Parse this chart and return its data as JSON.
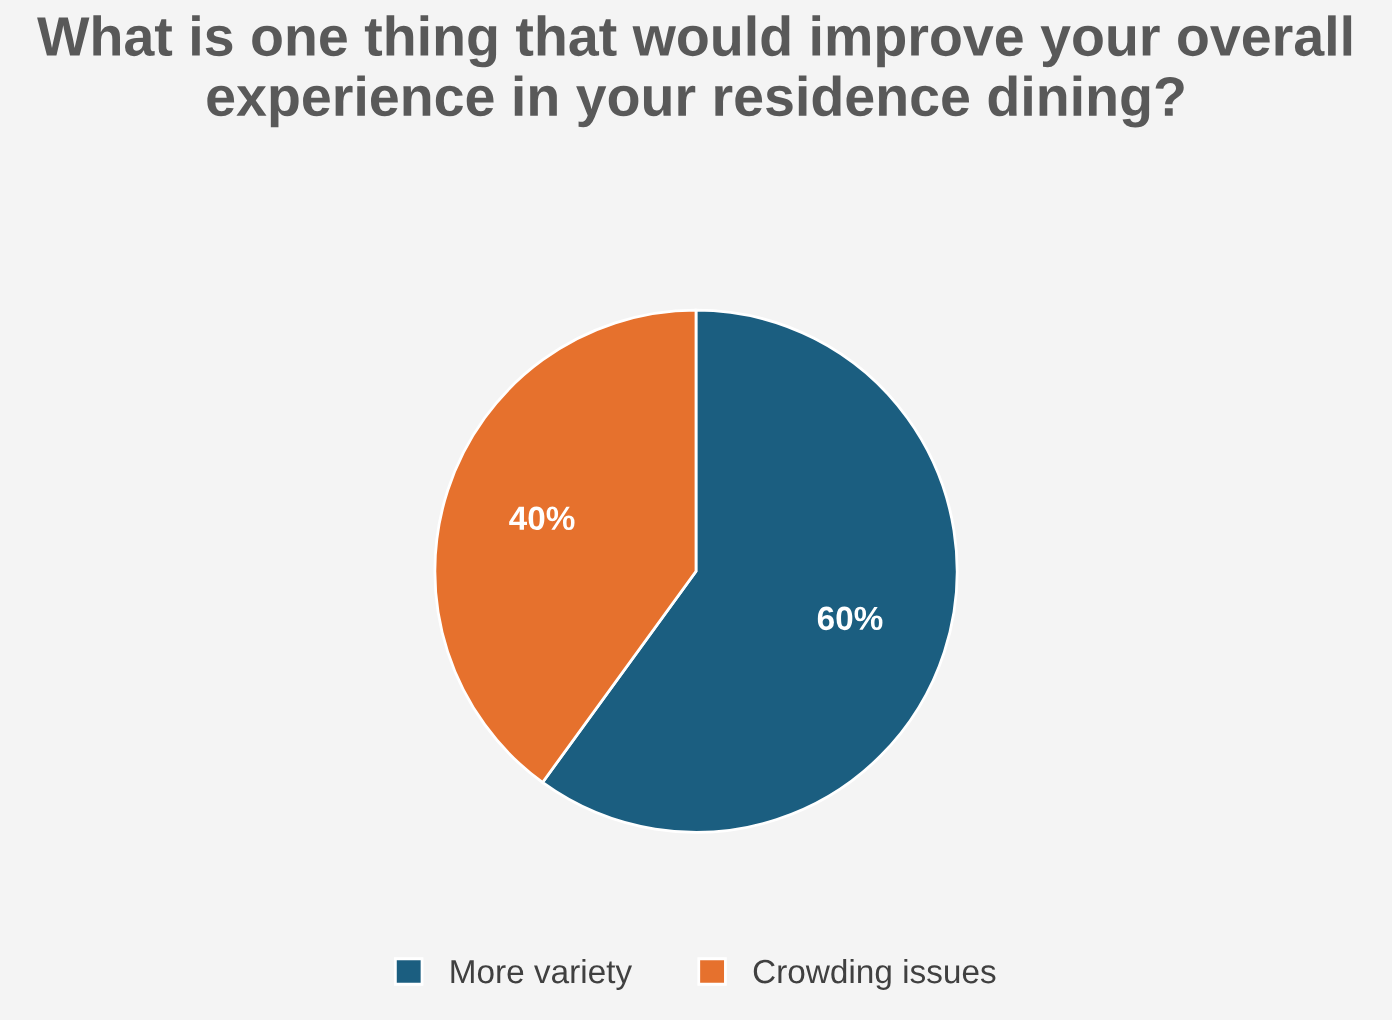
{
  "chart_data": {
    "type": "pie",
    "title": "What is one thing that would improve your overall experience in your residence dining?",
    "categories": [
      "More variety",
      "Crowding issues"
    ],
    "values": [
      60,
      40
    ],
    "colors": [
      "#1b5e80",
      "#e6712d"
    ],
    "value_labels": [
      "60%",
      "40%"
    ],
    "legend": "bottom"
  }
}
